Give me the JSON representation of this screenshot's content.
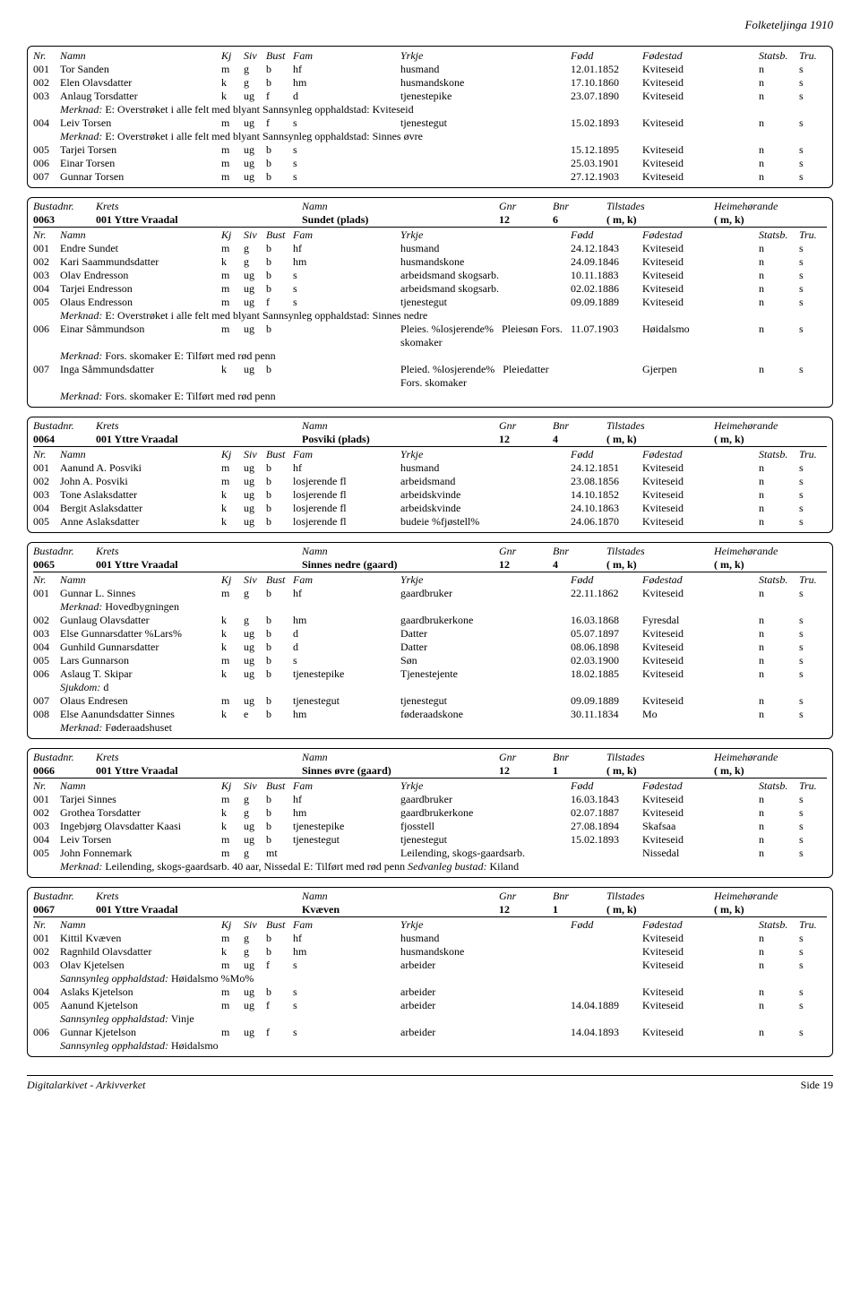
{
  "page_header": "Folketeljinga 1910",
  "footer_left": "Digitalarkivet - Arkivverket",
  "footer_right": "Side 19",
  "bustad_header_labels": {
    "bnr": "Bustadnr.",
    "krets": "Krets",
    "namn": "Namn",
    "gnr": "Gnr",
    "bnr2": "Bnr",
    "tilstades": "Tilstades",
    "heime": "Heimehørande"
  },
  "person_header_labels": {
    "nr": "Nr.",
    "namn": "Namn",
    "kj": "Kj",
    "siv": "Siv",
    "bust": "Bust",
    "fam": "Fam",
    "yrkje": "Yrkje",
    "fodd": "Fødd",
    "fodestad": "Fødestad",
    "statsb": "Statsb.",
    "tru": "Tru."
  },
  "labels": {
    "merknad": "Merknad:",
    "sann": "Sannsynleg opphaldstad:",
    "sjukdom": "Sjukdom:",
    "sedvanleg": "Sedvanleg bustad:"
  },
  "sections": [
    {
      "header_only": true,
      "people": [
        {
          "nr": "001",
          "namn": "Tor Sanden",
          "kj": "m",
          "siv": "g",
          "bust": "b",
          "fam": "hf",
          "yrkje": "husmand",
          "fodd": "12.01.1852",
          "sted": "Kviteseid",
          "sb": "n",
          "tr": "s"
        },
        {
          "nr": "002",
          "namn": "Elen Olavsdatter",
          "kj": "k",
          "siv": "g",
          "bust": "b",
          "fam": "hm",
          "yrkje": "husmandskone",
          "fodd": "17.10.1860",
          "sted": "Kviteseid",
          "sb": "n",
          "tr": "s"
        },
        {
          "nr": "003",
          "namn": "Anlaug Torsdatter",
          "kj": "k",
          "siv": "ug",
          "bust": "f",
          "fam": "d",
          "yrkje": "tjenestepike",
          "fodd": "23.07.1890",
          "sted": "Kviteseid",
          "sb": "n",
          "tr": "s",
          "merknad": "E: Overstrøket i alle felt med blyant Sannsynleg opphaldstad: Kviteseid"
        },
        {
          "nr": "004",
          "namn": "Leiv Torsen",
          "kj": "m",
          "siv": "ug",
          "bust": "f",
          "fam": "s",
          "yrkje": "tjenestegut",
          "fodd": "15.02.1893",
          "sted": "Kviteseid",
          "sb": "n",
          "tr": "s",
          "merknad": "E: Overstrøket i alle felt med blyant Sannsynleg opphaldstad: Sinnes øvre"
        },
        {
          "nr": "005",
          "namn": "Tarjei Torsen",
          "kj": "m",
          "siv": "ug",
          "bust": "b",
          "fam": "s",
          "yrkje": "",
          "fodd": "15.12.1895",
          "sted": "Kviteseid",
          "sb": "n",
          "tr": "s"
        },
        {
          "nr": "006",
          "namn": "Einar Torsen",
          "kj": "m",
          "siv": "ug",
          "bust": "b",
          "fam": "s",
          "yrkje": "",
          "fodd": "25.03.1901",
          "sted": "Kviteseid",
          "sb": "n",
          "tr": "s"
        },
        {
          "nr": "007",
          "namn": "Gunnar Torsen",
          "kj": "m",
          "siv": "ug",
          "bust": "b",
          "fam": "s",
          "yrkje": "",
          "fodd": "27.12.1903",
          "sted": "Kviteseid",
          "sb": "n",
          "tr": "s"
        }
      ]
    },
    {
      "bustad": {
        "nr": "0063",
        "krets": "001 Yttre Vraadal",
        "namn": "Sundet (plads)",
        "gnr": "12",
        "bnr": "6",
        "til": "( m, k)",
        "heime": "( m, k)"
      },
      "people": [
        {
          "nr": "001",
          "namn": "Endre Sundet",
          "kj": "m",
          "siv": "g",
          "bust": "b",
          "fam": "hf",
          "yrkje": "husmand",
          "fodd": "24.12.1843",
          "sted": "Kviteseid",
          "sb": "n",
          "tr": "s"
        },
        {
          "nr": "002",
          "namn": "Kari Saammundsdatter",
          "kj": "k",
          "siv": "g",
          "bust": "b",
          "fam": "hm",
          "yrkje": "husmandskone",
          "fodd": "24.09.1846",
          "sted": "Kviteseid",
          "sb": "n",
          "tr": "s"
        },
        {
          "nr": "003",
          "namn": "Olav Endresson",
          "kj": "m",
          "siv": "ug",
          "bust": "b",
          "fam": "s",
          "yrkje": "arbeidsmand skogsarb.",
          "fodd": "10.11.1883",
          "sted": "Kviteseid",
          "sb": "n",
          "tr": "s"
        },
        {
          "nr": "004",
          "namn": "Tarjei Endresson",
          "kj": "m",
          "siv": "ug",
          "bust": "b",
          "fam": "s",
          "yrkje": "arbeidsmand skogsarb.",
          "fodd": "02.02.1886",
          "sted": "Kviteseid",
          "sb": "n",
          "tr": "s"
        },
        {
          "nr": "005",
          "namn": "Olaus Endresson",
          "kj": "m",
          "siv": "ug",
          "bust": "f",
          "fam": "s",
          "yrkje": "tjenestegut",
          "fodd": "09.09.1889",
          "sted": "Kviteseid",
          "sb": "n",
          "tr": "s",
          "merknad": "E: Overstrøket i alle felt med blyant Sannsynleg opphaldstad: Sinnes nedre"
        },
        {
          "nr": "006",
          "namn": "Einar Såmmundson",
          "kj": "m",
          "siv": "ug",
          "bust": "b",
          "fam": "",
          "yrkje": "Pleies. %losjerende%",
          "yrkje2": "Pleiesøn Fors. skomaker",
          "fodd": "11.07.1903",
          "sted": "Høidalsmo",
          "sb": "n",
          "tr": "s",
          "merknad": "Fors. skomaker E: Tilført med rød penn"
        },
        {
          "nr": "007",
          "namn": "Inga Såmmundsdatter",
          "kj": "k",
          "siv": "ug",
          "bust": "b",
          "fam": "",
          "yrkje": "Pleied. %losjerende%",
          "yrkje2": "Pleiedatter Fors. skomaker",
          "fodd": "",
          "sted": "Gjerpen",
          "sb": "n",
          "tr": "s",
          "merknad": "Fors. skomaker E: Tilført med rød penn"
        }
      ]
    },
    {
      "bustad": {
        "nr": "0064",
        "krets": "001 Yttre Vraadal",
        "namn": "Posviki (plads)",
        "gnr": "12",
        "bnr": "4",
        "til": "( m, k)",
        "heime": "( m, k)"
      },
      "people": [
        {
          "nr": "001",
          "namn": "Aanund A. Posviki",
          "kj": "m",
          "siv": "ug",
          "bust": "b",
          "fam": "hf",
          "yrkje": "husmand",
          "fodd": "24.12.1851",
          "sted": "Kviteseid",
          "sb": "n",
          "tr": "s"
        },
        {
          "nr": "002",
          "namn": "John A. Posviki",
          "kj": "m",
          "siv": "ug",
          "bust": "b",
          "fam": "losjerende fl",
          "yrkje": "arbeidsmand",
          "fodd": "23.08.1856",
          "sted": "Kviteseid",
          "sb": "n",
          "tr": "s"
        },
        {
          "nr": "003",
          "namn": "Tone Aslaksdatter",
          "kj": "k",
          "siv": "ug",
          "bust": "b",
          "fam": "losjerende fl",
          "yrkje": "arbeidskvinde",
          "fodd": "14.10.1852",
          "sted": "Kviteseid",
          "sb": "n",
          "tr": "s"
        },
        {
          "nr": "004",
          "namn": "Bergit Aslaksdatter",
          "kj": "k",
          "siv": "ug",
          "bust": "b",
          "fam": "losjerende fl",
          "yrkje": "arbeidskvinde",
          "fodd": "24.10.1863",
          "sted": "Kviteseid",
          "sb": "n",
          "tr": "s"
        },
        {
          "nr": "005",
          "namn": "Anne Aslaksdatter",
          "kj": "k",
          "siv": "ug",
          "bust": "b",
          "fam": "losjerende fl",
          "yrkje": "budeie %fjøstell%",
          "fodd": "24.06.1870",
          "sted": "Kviteseid",
          "sb": "n",
          "tr": "s"
        }
      ]
    },
    {
      "bustad": {
        "nr": "0065",
        "krets": "001 Yttre Vraadal",
        "namn": "Sinnes nedre (gaard)",
        "gnr": "12",
        "bnr": "4",
        "til": "( m, k)",
        "heime": "( m, k)"
      },
      "people": [
        {
          "nr": "001",
          "namn": "Gunnar L. Sinnes",
          "kj": "m",
          "siv": "g",
          "bust": "b",
          "fam": "hf",
          "yrkje": "gaardbruker",
          "fodd": "22.11.1862",
          "sted": "Kviteseid",
          "sb": "n",
          "tr": "s",
          "merknad": "Hovedbygningen"
        },
        {
          "nr": "002",
          "namn": "Gunlaug Olavsdatter",
          "kj": "k",
          "siv": "g",
          "bust": "b",
          "fam": "hm",
          "yrkje": "gaardbrukerkone",
          "fodd": "16.03.1868",
          "sted": "Fyresdal",
          "sb": "n",
          "tr": "s"
        },
        {
          "nr": "003",
          "namn": "Else Gunnarsdatter %Lars%",
          "kj": "k",
          "siv": "ug",
          "bust": "b",
          "fam": "d",
          "yrkje": "Datter",
          "fodd": "05.07.1897",
          "sted": "Kviteseid",
          "sb": "n",
          "tr": "s"
        },
        {
          "nr": "004",
          "namn": "Gunhild Gunnarsdatter",
          "kj": "k",
          "siv": "ug",
          "bust": "b",
          "fam": "d",
          "yrkje": "Datter",
          "fodd": "08.06.1898",
          "sted": "Kviteseid",
          "sb": "n",
          "tr": "s"
        },
        {
          "nr": "005",
          "namn": "Lars Gunnarson",
          "kj": "m",
          "siv": "ug",
          "bust": "b",
          "fam": "s",
          "yrkje": "Søn",
          "fodd": "02.03.1900",
          "sted": "Kviteseid",
          "sb": "n",
          "tr": "s"
        },
        {
          "nr": "006",
          "namn": "Aslaug T. Skipar",
          "kj": "k",
          "siv": "ug",
          "bust": "b",
          "fam": "tjenestepike",
          "yrkje": "Tjenestejente",
          "fodd": "18.02.1885",
          "sted": "Kviteseid",
          "sb": "n",
          "tr": "s",
          "sjukdom": "d"
        },
        {
          "nr": "007",
          "namn": "Olaus Endresen",
          "kj": "m",
          "siv": "ug",
          "bust": "b",
          "fam": "tjenestegut",
          "yrkje": "tjenestegut",
          "fodd": "09.09.1889",
          "sted": "Kviteseid",
          "sb": "n",
          "tr": "s"
        },
        {
          "nr": "008",
          "namn": "Else Aanundsdatter Sinnes",
          "kj": "k",
          "siv": "e",
          "bust": "b",
          "fam": "hm",
          "yrkje": "føderaadskone",
          "fodd": "30.11.1834",
          "sted": "Mo",
          "sb": "n",
          "tr": "s",
          "merknad": "Føderaadshuset"
        }
      ]
    },
    {
      "bustad": {
        "nr": "0066",
        "krets": "001 Yttre Vraadal",
        "namn": "Sinnes øvre (gaard)",
        "gnr": "12",
        "bnr": "1",
        "til": "( m, k)",
        "heime": "( m, k)"
      },
      "people": [
        {
          "nr": "001",
          "namn": "Tarjei Sinnes",
          "kj": "m",
          "siv": "g",
          "bust": "b",
          "fam": "hf",
          "yrkje": "gaardbruker",
          "fodd": "16.03.1843",
          "sted": "Kviteseid",
          "sb": "n",
          "tr": "s"
        },
        {
          "nr": "002",
          "namn": "Grothea Torsdatter",
          "kj": "k",
          "siv": "g",
          "bust": "b",
          "fam": "hm",
          "yrkje": "gaardbrukerkone",
          "fodd": "02.07.1887",
          "sted": "Kviteseid",
          "sb": "n",
          "tr": "s"
        },
        {
          "nr": "003",
          "namn": "Ingebjørg Olavsdatter Kaasi",
          "kj": "k",
          "siv": "ug",
          "bust": "b",
          "fam": "tjenestepike",
          "yrkje": "fjosstell",
          "fodd": "27.08.1894",
          "sted": "Skafsaa",
          "sb": "n",
          "tr": "s"
        },
        {
          "nr": "004",
          "namn": "Leiv Torsen",
          "kj": "m",
          "siv": "ug",
          "bust": "b",
          "fam": "tjenestegut",
          "yrkje": "tjenestegut",
          "fodd": "15.02.1893",
          "sted": "Kviteseid",
          "sb": "n",
          "tr": "s"
        },
        {
          "nr": "005",
          "namn": "John Fonnemark",
          "kj": "m",
          "siv": "g",
          "bust": "mt",
          "fam": "",
          "yrkje": "Leilending, skogs-gaardsarb.",
          "fodd": "",
          "sted": "Nissedal",
          "sb": "n",
          "tr": "s",
          "merknad": "Leilending, skogs-gaardsarb. 40 aar, Nissedal E: Tilført med rød penn Sedvanleg bustad: Kiland",
          "merknad_italic": "Sedvanleg bustad:"
        }
      ]
    },
    {
      "bustad": {
        "nr": "0067",
        "krets": "001 Yttre Vraadal",
        "namn": "Kvæven",
        "gnr": "12",
        "bnr": "1",
        "til": "( m, k)",
        "heime": "( m, k)"
      },
      "people": [
        {
          "nr": "001",
          "namn": "Kittil Kvæven",
          "kj": "m",
          "siv": "g",
          "bust": "b",
          "fam": "hf",
          "yrkje": "husmand",
          "fodd": "",
          "sted": "Kviteseid",
          "sb": "n",
          "tr": "s"
        },
        {
          "nr": "002",
          "namn": "Ragnhild Olavsdatter",
          "kj": "k",
          "siv": "g",
          "bust": "b",
          "fam": "hm",
          "yrkje": "husmandskone",
          "fodd": "",
          "sted": "Kviteseid",
          "sb": "n",
          "tr": "s"
        },
        {
          "nr": "003",
          "namn": "Olav Kjetelsen",
          "kj": "m",
          "siv": "ug",
          "bust": "f",
          "fam": "s",
          "yrkje": "arbeider",
          "fodd": "",
          "sted": "Kviteseid",
          "sb": "n",
          "tr": "s",
          "sann": "Høidalsmo %Mo%"
        },
        {
          "nr": "004",
          "namn": "Aslaks Kjetelson",
          "kj": "m",
          "siv": "ug",
          "bust": "b",
          "fam": "s",
          "yrkje": "arbeider",
          "fodd": "",
          "sted": "Kviteseid",
          "sb": "n",
          "tr": "s"
        },
        {
          "nr": "005",
          "namn": "Aanund Kjetelson",
          "kj": "m",
          "siv": "ug",
          "bust": "f",
          "fam": "s",
          "yrkje": "arbeider",
          "fodd": "14.04.1889",
          "sted": "Kviteseid",
          "sb": "n",
          "tr": "s",
          "sann": "Vinje"
        },
        {
          "nr": "006",
          "namn": "Gunnar Kjetelson",
          "kj": "m",
          "siv": "ug",
          "bust": "f",
          "fam": "s",
          "yrkje": "arbeider",
          "fodd": "14.04.1893",
          "sted": "Kviteseid",
          "sb": "n",
          "tr": "s",
          "sann": "Høidalsmo"
        }
      ]
    }
  ]
}
